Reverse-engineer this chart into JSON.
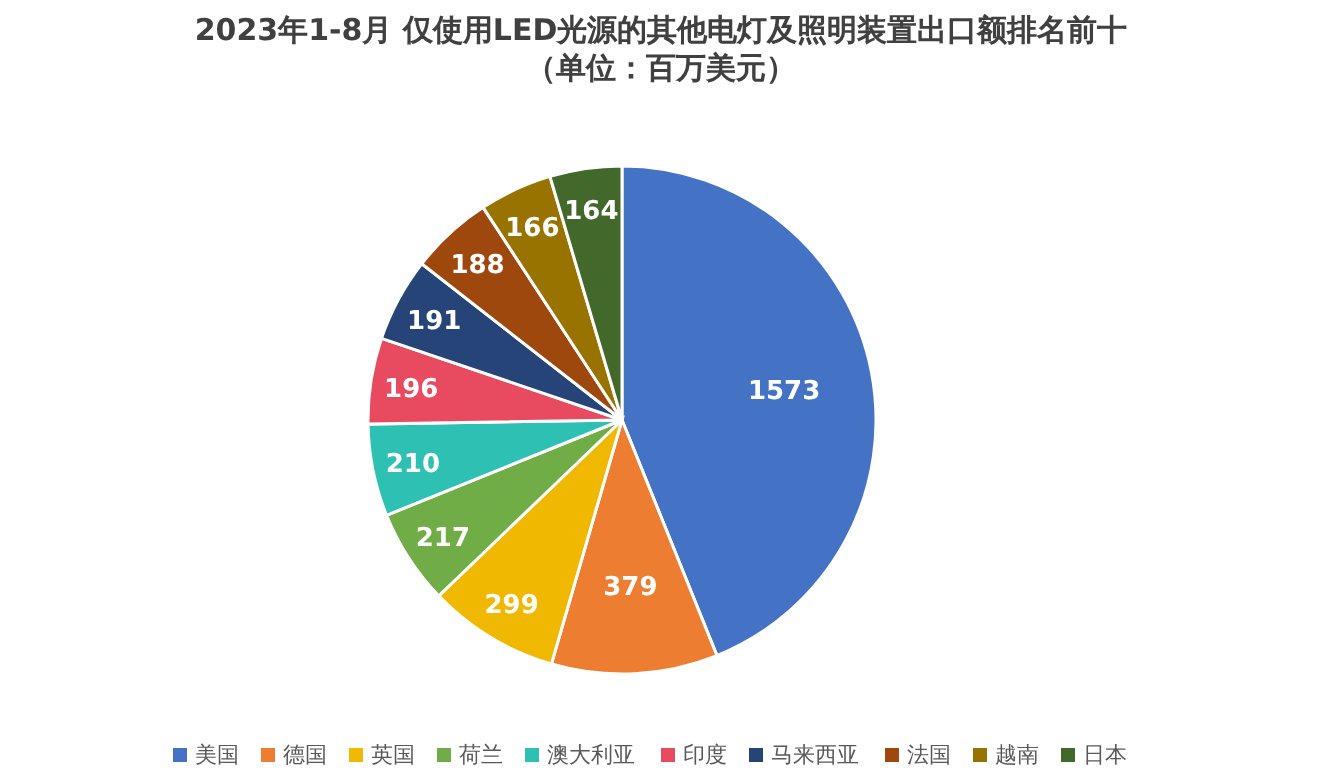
{
  "chart_data": {
    "type": "pie",
    "title": "2023年1-8月 仅使用LED光源的其他电灯及照明装置出口额排名前十",
    "subtitle": "（单位：百万美元）",
    "categories": [
      "美国",
      "德国",
      "英国",
      "荷兰",
      "澳大利亚",
      "印度",
      "马来西亚",
      "法国",
      "越南",
      "日本"
    ],
    "values": [
      1573,
      379,
      299,
      217,
      210,
      196,
      191,
      188,
      166,
      164
    ],
    "colors": [
      "#4472c4",
      "#ed7d31",
      "#f0b800",
      "#70ad47",
      "#2fc0b4",
      "#e84a5f",
      "#264478",
      "#9e480e",
      "#997300",
      "#43682b"
    ],
    "data_labels": true,
    "legend": "bottom"
  }
}
